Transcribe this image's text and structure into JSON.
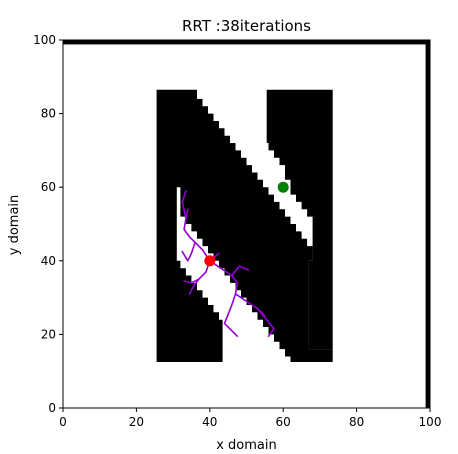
{
  "chart_data": {
    "type": "scatter",
    "title": "RRT :38iterations",
    "xlabel": "x domain",
    "ylabel": "y domain",
    "xlim": [
      0,
      100
    ],
    "ylim": [
      0,
      100
    ],
    "x_ticks": [
      0,
      20,
      40,
      60,
      80,
      100
    ],
    "y_ticks": [
      0,
      20,
      40,
      60,
      80,
      100
    ],
    "x_tick_labels": [
      "0",
      "20",
      "40",
      "60",
      "80",
      "100"
    ],
    "y_tick_labels": [
      "0",
      "20",
      "40",
      "60",
      "80",
      "100"
    ],
    "grid": false,
    "obstacle_color": "#000000",
    "border_walls": [
      {
        "x0": 0,
        "y0": 98.8,
        "x1": 100,
        "y1": 100
      },
      {
        "x0": 98.8,
        "y0": 0,
        "x1": 100,
        "y1": 100
      }
    ],
    "obstacle_polygons": [
      [
        [
          25.5,
          86.5
        ],
        [
          36.5,
          86.5
        ],
        [
          36.5,
          84
        ],
        [
          38,
          84
        ],
        [
          38,
          82
        ],
        [
          39.5,
          82
        ],
        [
          39.5,
          80
        ],
        [
          41,
          80
        ],
        [
          41,
          78
        ],
        [
          42.5,
          78
        ],
        [
          42.5,
          76
        ],
        [
          44,
          76
        ],
        [
          44,
          74
        ],
        [
          45.5,
          74
        ],
        [
          45.5,
          72
        ],
        [
          47,
          72
        ],
        [
          47,
          70
        ],
        [
          48.5,
          70
        ],
        [
          48.5,
          68
        ],
        [
          50,
          68
        ],
        [
          50,
          66
        ],
        [
          51.5,
          66
        ],
        [
          51.5,
          64
        ],
        [
          53,
          64
        ],
        [
          53,
          62
        ],
        [
          54.5,
          62
        ],
        [
          54.5,
          60
        ],
        [
          56,
          60
        ],
        [
          56,
          58
        ],
        [
          57.5,
          58
        ],
        [
          57.5,
          56
        ],
        [
          59,
          56
        ],
        [
          59,
          54
        ],
        [
          60.5,
          54
        ],
        [
          60.5,
          52
        ],
        [
          62,
          52
        ],
        [
          62,
          50
        ],
        [
          63.5,
          50
        ],
        [
          63.5,
          48
        ],
        [
          65,
          48
        ],
        [
          65,
          46
        ],
        [
          66.5,
          46
        ],
        [
          66.5,
          44
        ],
        [
          68,
          44
        ],
        [
          68,
          40
        ],
        [
          67,
          40
        ],
        [
          67,
          16
        ],
        [
          73.5,
          16
        ],
        [
          73.5,
          12.5
        ],
        [
          62,
          12.5
        ],
        [
          62,
          14
        ],
        [
          60.5,
          14
        ],
        [
          60.5,
          16
        ],
        [
          59,
          16
        ],
        [
          59,
          18
        ],
        [
          57.5,
          18
        ],
        [
          57.5,
          20
        ],
        [
          56,
          20
        ],
        [
          56,
          22
        ],
        [
          54.5,
          22
        ],
        [
          54.5,
          24
        ],
        [
          53,
          24
        ],
        [
          53,
          26
        ],
        [
          51.5,
          26
        ],
        [
          51.5,
          28
        ],
        [
          50,
          28
        ],
        [
          50,
          30
        ],
        [
          48.5,
          30
        ],
        [
          48.5,
          32
        ],
        [
          47,
          32
        ],
        [
          47,
          34
        ],
        [
          45.5,
          34
        ],
        [
          45.5,
          36
        ],
        [
          44,
          36
        ],
        [
          44,
          38
        ],
        [
          42.5,
          38
        ],
        [
          42.5,
          40
        ],
        [
          41,
          40
        ],
        [
          41,
          42
        ],
        [
          39.5,
          42
        ],
        [
          39.5,
          44
        ],
        [
          38,
          44
        ],
        [
          38,
          46
        ],
        [
          36.5,
          46
        ],
        [
          36.5,
          48
        ],
        [
          35,
          48
        ],
        [
          35,
          50
        ],
        [
          33.5,
          50
        ],
        [
          33.5,
          52
        ],
        [
          32,
          52
        ],
        [
          32,
          60
        ],
        [
          31,
          60
        ],
        [
          31,
          40
        ],
        [
          32,
          40
        ],
        [
          32,
          38
        ],
        [
          33.5,
          38
        ],
        [
          33.5,
          36
        ],
        [
          35,
          36
        ],
        [
          35,
          34
        ],
        [
          36.5,
          34
        ],
        [
          36.5,
          32
        ],
        [
          38,
          32
        ],
        [
          38,
          30
        ],
        [
          39.5,
          30
        ],
        [
          39.5,
          28
        ],
        [
          41,
          28
        ],
        [
          41,
          26
        ],
        [
          42.5,
          26
        ],
        [
          42.5,
          24
        ],
        [
          43.5,
          24
        ],
        [
          43.5,
          12.5
        ],
        [
          25.5,
          12.5
        ]
      ],
      [
        [
          55.5,
          86.5
        ],
        [
          73.5,
          86.5
        ],
        [
          73.5,
          16
        ],
        [
          67,
          16
        ],
        [
          67,
          40
        ],
        [
          68,
          40
        ],
        [
          68,
          52
        ],
        [
          66.5,
          52
        ],
        [
          66.5,
          54
        ],
        [
          65,
          54
        ],
        [
          65,
          56
        ],
        [
          63.5,
          56
        ],
        [
          63.5,
          58
        ],
        [
          62,
          58
        ],
        [
          62,
          62
        ],
        [
          60.5,
          62
        ],
        [
          60.5,
          66
        ],
        [
          59,
          66
        ],
        [
          59,
          68
        ],
        [
          57.5,
          68
        ],
        [
          57.5,
          70
        ],
        [
          56,
          70
        ],
        [
          56,
          72
        ],
        [
          55.5,
          72
        ]
      ]
    ],
    "tree_color": "#9400d3",
    "tree_edges": [
      [
        [
          40,
          40
        ],
        [
          38,
          43
        ],
        [
          36,
          45
        ],
        [
          34.5,
          46.5
        ],
        [
          33,
          48.5
        ],
        [
          33.5,
          51.5
        ],
        [
          34,
          54
        ]
      ],
      [
        [
          33.5,
          51.5
        ],
        [
          32.5,
          56
        ],
        [
          33.5,
          59
        ]
      ],
      [
        [
          40,
          40
        ],
        [
          39,
          37
        ],
        [
          37,
          35
        ],
        [
          35.5,
          33
        ],
        [
          34.5,
          31
        ]
      ],
      [
        [
          37,
          35
        ],
        [
          35,
          34
        ],
        [
          33,
          34.5
        ]
      ],
      [
        [
          36,
          45
        ],
        [
          35,
          42
        ],
        [
          34,
          40
        ],
        [
          32.5,
          42.5
        ]
      ],
      [
        [
          40,
          40
        ],
        [
          43,
          38
        ],
        [
          46,
          36
        ],
        [
          47.5,
          34
        ],
        [
          47,
          31
        ]
      ],
      [
        [
          46,
          36
        ],
        [
          48,
          38.5
        ],
        [
          50.5,
          37.5
        ]
      ],
      [
        [
          47,
          31
        ],
        [
          46,
          28
        ],
        [
          45,
          25.5
        ],
        [
          44,
          23
        ]
      ],
      [
        [
          47,
          31
        ],
        [
          50,
          29
        ],
        [
          53,
          27
        ],
        [
          55,
          25
        ]
      ],
      [
        [
          44,
          23
        ],
        [
          46,
          21
        ],
        [
          47.5,
          19.5
        ]
      ],
      [
        [
          53,
          27
        ],
        [
          55.5,
          24
        ],
        [
          57.5,
          21.5
        ],
        [
          56,
          19.5
        ]
      ],
      [
        [
          40,
          40
        ],
        [
          42.5,
          42
        ]
      ]
    ],
    "start": {
      "x": 40,
      "y": 40,
      "color": "#ff0000"
    },
    "goal": {
      "x": 60,
      "y": 60,
      "color": "#008000"
    }
  }
}
